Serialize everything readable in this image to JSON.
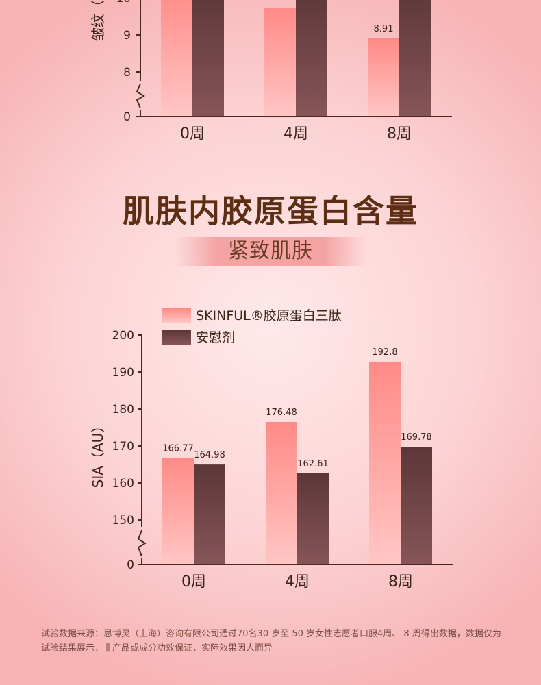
{
  "heading": "肌肤内胶原蛋白含量",
  "subtitle": "紧致肌肤",
  "footnote": "试验数据来源：思博灵（上海）咨询有限公司通过70名30 岁至 50 岁女性志愿者口服4周、 8 周得出数据，数据仅为试验结果展示，非产品或成分功效保证，实际效果因人而异",
  "colors": {
    "series_a_top": "#ff8a87",
    "series_a_bottom": "#ffc6c4",
    "series_b_top": "#5c3739",
    "series_b_bottom": "#865558",
    "axis": "#4a2a1c",
    "tick_text": "#3a2418"
  },
  "chart_data": [
    {
      "type": "bar",
      "categories": [
        "0周",
        "4周",
        "8周"
      ],
      "ylabel": "皱纹（",
      "y_ticks": [
        "0",
        "8",
        "9",
        "10"
      ],
      "axis_break": true,
      "series": [
        {
          "name": "",
          "values": [
            null,
            9.74,
            8.91
          ],
          "labels": [
            "",
            "",
            "8.91"
          ]
        },
        {
          "name": "",
          "values": [
            null,
            null,
            null
          ],
          "labels": [
            "",
            "",
            ""
          ]
        }
      ],
      "title": "",
      "xlabel": ""
    },
    {
      "type": "bar",
      "categories": [
        "0周",
        "4周",
        "8周"
      ],
      "ylabel": "SIA（AU）",
      "y_ticks": [
        "0",
        "150",
        "160",
        "170",
        "180",
        "190",
        "200"
      ],
      "ylim": [
        150,
        200
      ],
      "axis_break": true,
      "legend_position": "top-left",
      "series": [
        {
          "name": "SKINFUL®胶原蛋白三肽",
          "values": [
            166.77,
            176.48,
            192.8
          ],
          "labels": [
            "166.77",
            "176.48",
            "192.8"
          ]
        },
        {
          "name": "安慰剂",
          "values": [
            164.98,
            162.61,
            169.78
          ],
          "labels": [
            "164.98",
            "162.61",
            "169.78"
          ]
        }
      ],
      "title": "",
      "xlabel": ""
    }
  ]
}
